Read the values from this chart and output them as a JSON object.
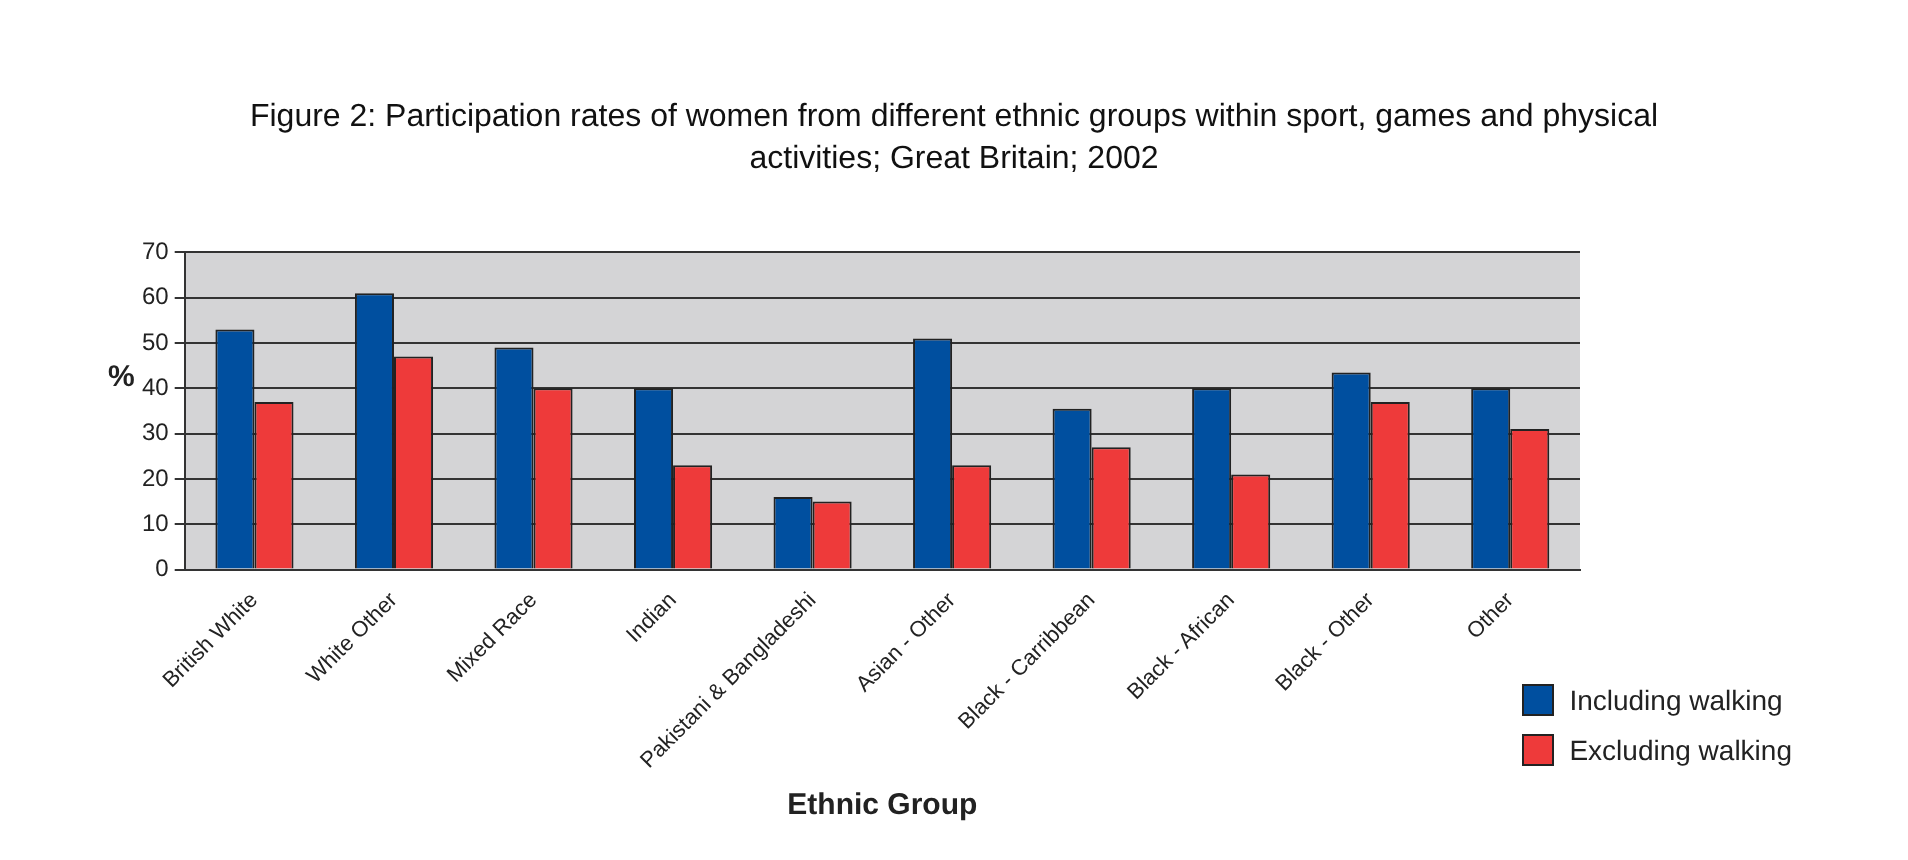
{
  "chart_data": {
    "type": "bar",
    "title": "Figure 2: Participation rates of women from different ethnic groups within sport, games and physical activities; Great Britain; 2002",
    "xlabel": "Ethnic Group",
    "ylabel": "%",
    "categories": [
      "British White",
      "White Other",
      "Mixed Race",
      "Indian",
      "Pakistani & Bangladeshi",
      "Asian - Other",
      "Black - Carribbean",
      "Black - African",
      "Black - Other",
      "Other"
    ],
    "series": [
      {
        "name": "Including walking",
        "color": "#004f9f",
        "values": [
          53,
          61,
          49,
          40,
          16,
          51,
          35.5,
          40,
          43.5,
          40
        ]
      },
      {
        "name": "Excluding walking",
        "color": "#ee3a3a",
        "values": [
          37,
          47,
          40,
          23,
          15,
          23,
          27,
          21,
          37,
          31
        ]
      }
    ],
    "ylim": [
      0,
      70
    ],
    "yticks": [
      0,
      10,
      20,
      30,
      40,
      50,
      60,
      70
    ],
    "grid": "y",
    "legend": "bottom right"
  }
}
